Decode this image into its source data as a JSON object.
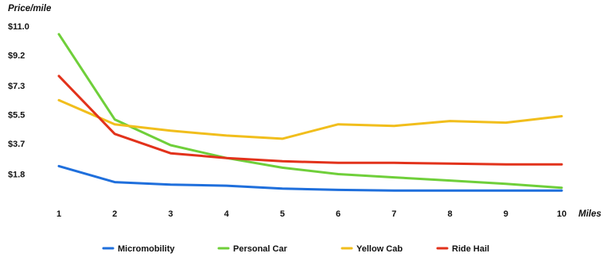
{
  "chart_data": {
    "type": "line",
    "title": "",
    "xlabel": "Miles",
    "ylabel": "Price/mile",
    "x": [
      1,
      2,
      3,
      4,
      5,
      6,
      7,
      8,
      9,
      10
    ],
    "x_tick_labels": [
      "1",
      "2",
      "3",
      "4",
      "5",
      "6",
      "7",
      "8",
      "9",
      "10"
    ],
    "y_tick_values": [
      1.8,
      3.7,
      5.5,
      7.3,
      9.2,
      11.0
    ],
    "y_tick_labels": [
      "$1.8",
      "$3.7",
      "$5.5",
      "$7.3",
      "$9.2",
      "$11.0"
    ],
    "ylim": [
      0,
      11.0
    ],
    "grid": false,
    "legend_position": "bottom",
    "series": [
      {
        "name": "Micromobility",
        "color": "#1f6fdc",
        "values": [
          2.3,
          1.3,
          1.15,
          1.08,
          0.9,
          0.82,
          0.78,
          0.78,
          0.78,
          0.78
        ]
      },
      {
        "name": "Personal Car",
        "color": "#6fcf3a",
        "values": [
          10.5,
          5.2,
          3.6,
          2.8,
          2.2,
          1.8,
          1.6,
          1.4,
          1.2,
          0.95
        ]
      },
      {
        "name": "Yellow Cab",
        "color": "#f1be1c",
        "values": [
          6.4,
          4.9,
          4.5,
          4.2,
          4.0,
          4.9,
          4.8,
          5.1,
          5.0,
          5.4
        ]
      },
      {
        "name": "Ride Hail",
        "color": "#e2321b",
        "values": [
          7.9,
          4.3,
          3.1,
          2.8,
          2.6,
          2.5,
          2.5,
          2.45,
          2.4,
          2.4
        ]
      }
    ]
  }
}
